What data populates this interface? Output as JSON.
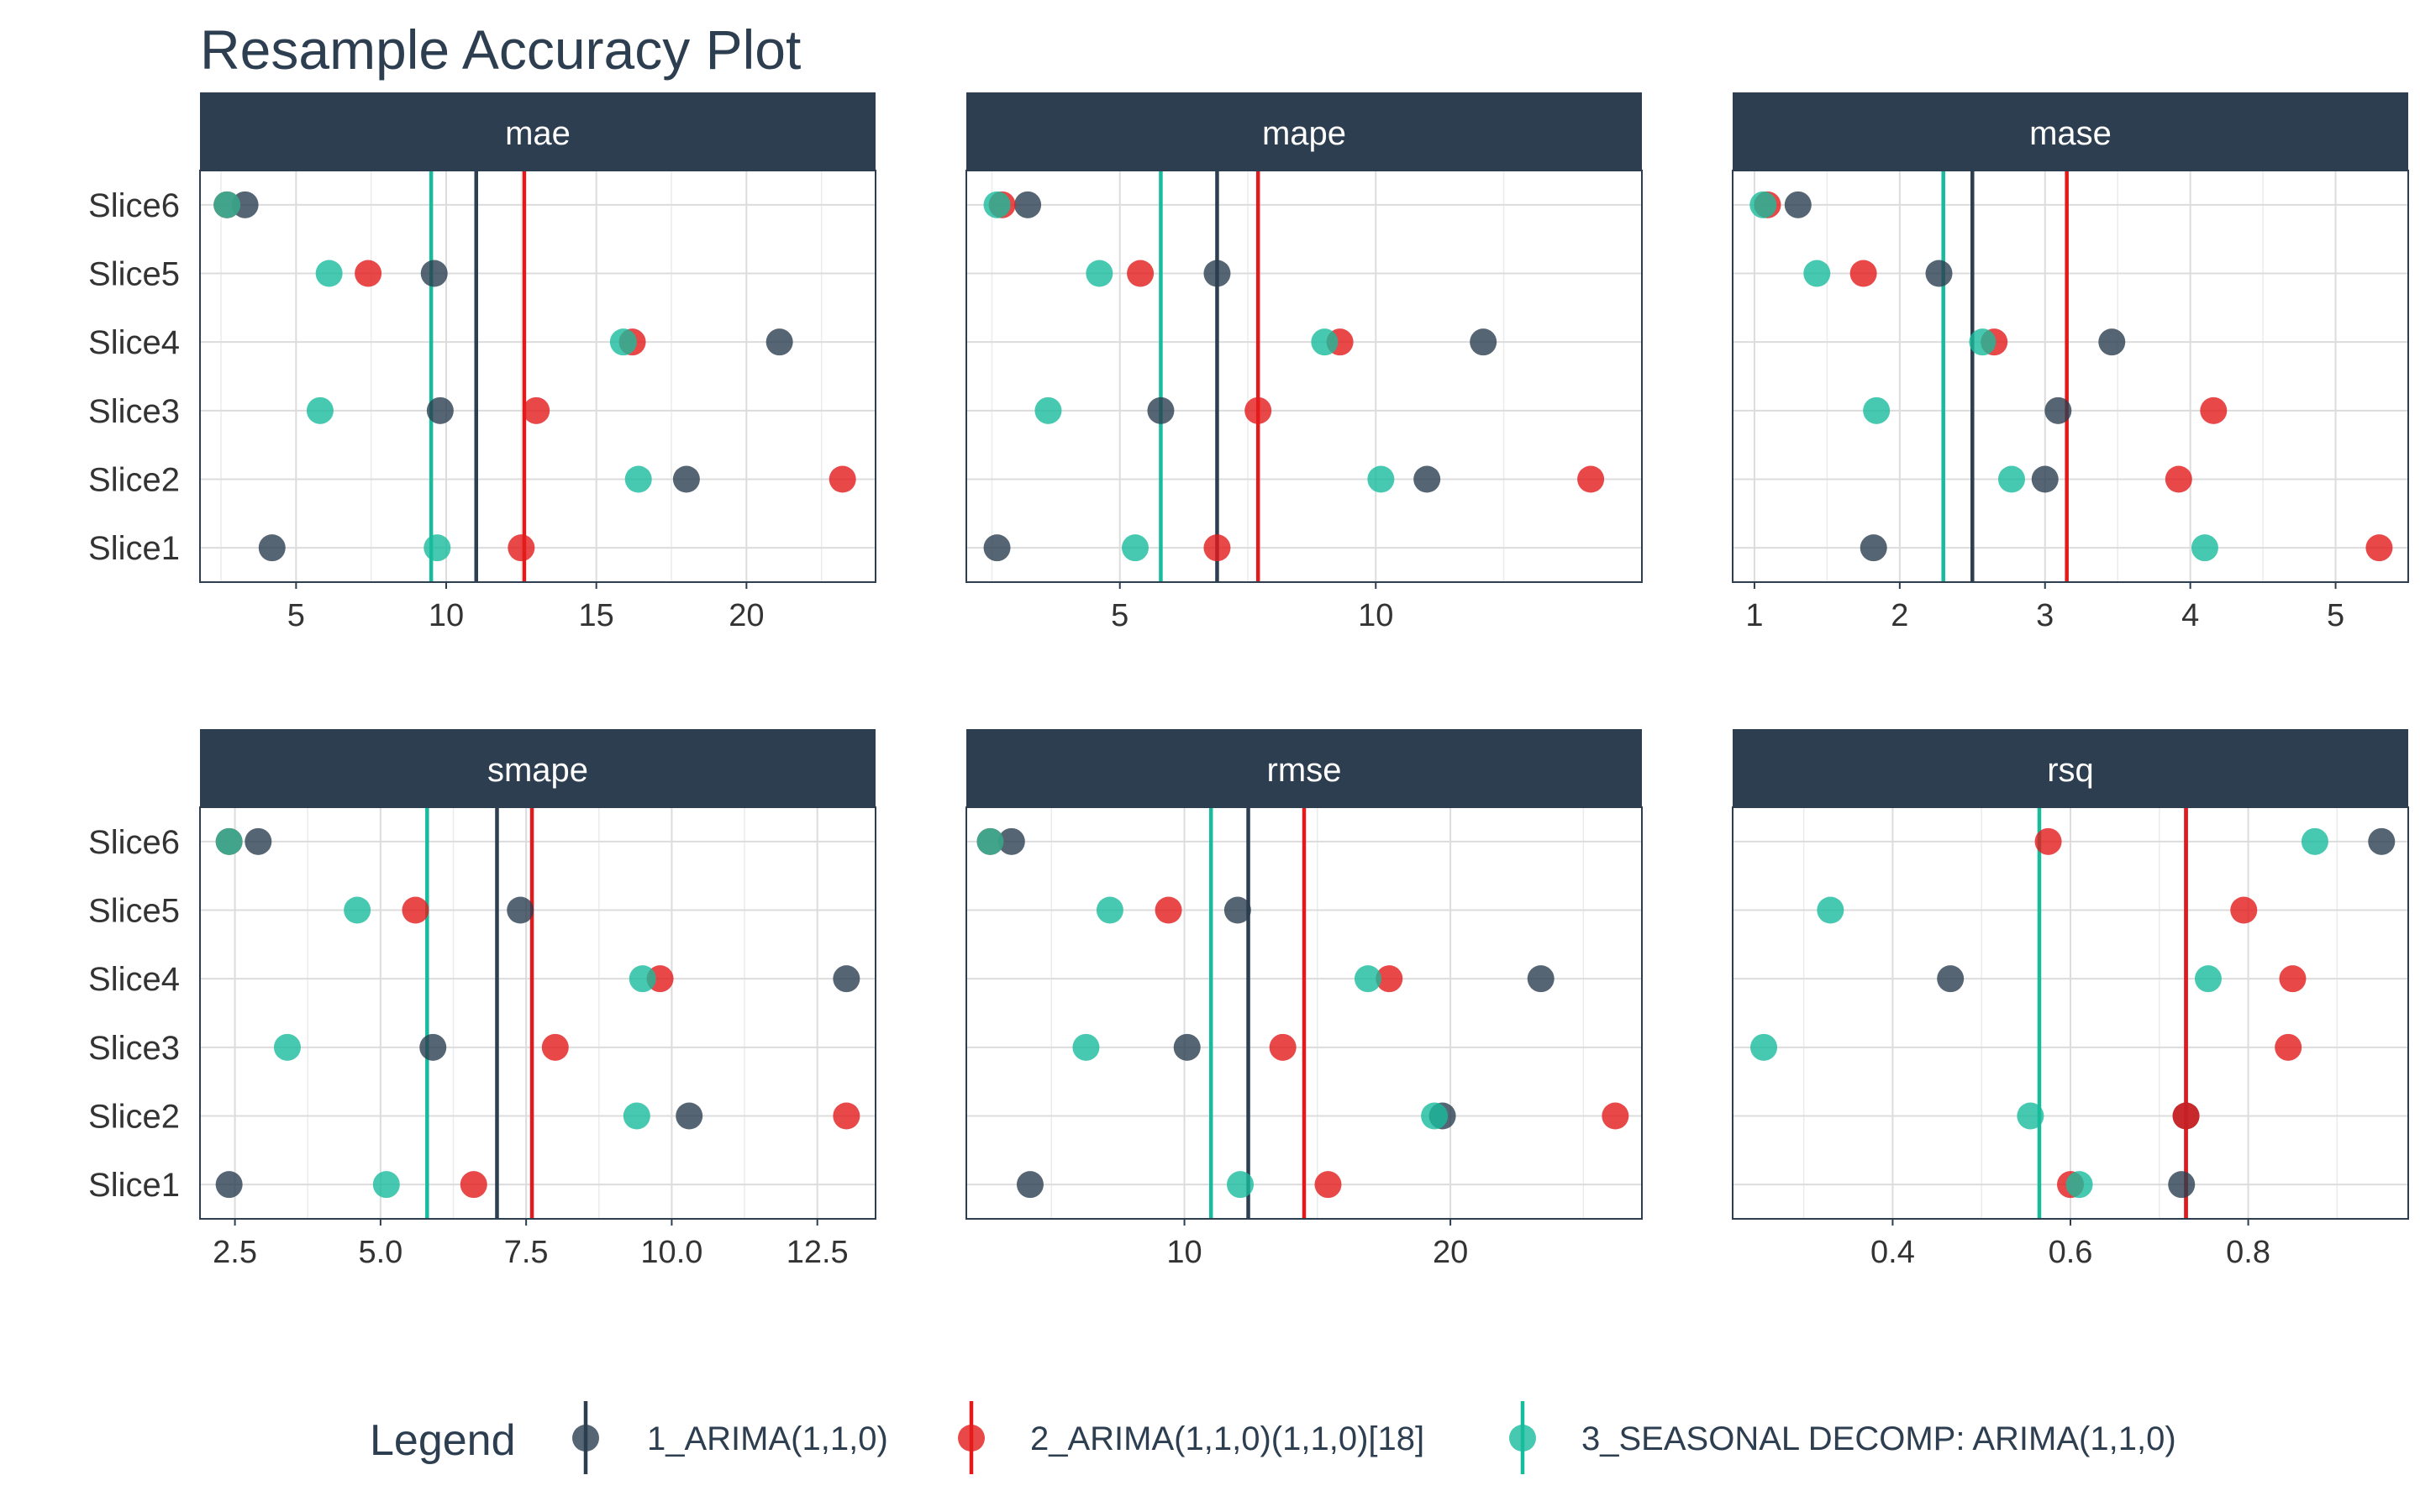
{
  "chart_data": {
    "type": "scatter",
    "title": "Resample Accuracy Plot",
    "categories": [
      "Slice1",
      "Slice2",
      "Slice3",
      "Slice4",
      "Slice5",
      "Slice6"
    ],
    "legend": {
      "title": "Legend",
      "position": "bottom",
      "items": [
        {
          "name": "1_ARIMA(1,1,0)",
          "color": "#2c3e50"
        },
        {
          "name": "2_ARIMA(1,1,0)(1,1,0)[18]",
          "color": "#e31a1c"
        },
        {
          "name": "3_SEASONAL DECOMP: ARIMA(1,1,0)",
          "color": "#18bc9c"
        }
      ]
    },
    "grid": true,
    "panels": [
      {
        "metric": "mae",
        "xlim": [
          1.8,
          24.3
        ],
        "ticks": [
          5,
          10,
          15,
          20
        ],
        "tick_labels": [
          "5",
          "10",
          "15",
          "20"
        ],
        "series": [
          {
            "name": "1_ARIMA(1,1,0)",
            "values": [
              4.2,
              18.0,
              9.8,
              21.1,
              9.6,
              3.3
            ],
            "mean": 11.0
          },
          {
            "name": "2_ARIMA(1,1,0)(1,1,0)[18]",
            "values": [
              12.5,
              23.2,
              13.0,
              16.2,
              7.4,
              2.7
            ],
            "mean": 12.6
          },
          {
            "name": "3_SEASONAL DECOMP: ARIMA(1,1,0)",
            "values": [
              9.7,
              16.4,
              5.8,
              15.9,
              6.1,
              2.7
            ],
            "mean": 9.5
          }
        ]
      },
      {
        "metric": "mape",
        "xlim": [
          2.0,
          15.2
        ],
        "ticks": [
          5,
          10
        ],
        "tick_labels": [
          "5",
          "10"
        ],
        "series": [
          {
            "name": "1_ARIMA(1,1,0)",
            "values": [
              2.6,
              11.0,
              5.8,
              12.1,
              6.9,
              3.2
            ],
            "mean": 6.9
          },
          {
            "name": "2_ARIMA(1,1,0)(1,1,0)[18]",
            "values": [
              6.9,
              14.2,
              7.7,
              9.3,
              5.4,
              2.7
            ],
            "mean": 7.7
          },
          {
            "name": "3_SEASONAL DECOMP: ARIMA(1,1,0)",
            "values": [
              5.3,
              10.1,
              3.6,
              9.0,
              4.6,
              2.6
            ],
            "mean": 5.8
          }
        ]
      },
      {
        "metric": "mase",
        "xlim": [
          0.85,
          5.5
        ],
        "ticks": [
          1,
          2,
          3,
          4,
          5
        ],
        "tick_labels": [
          "1",
          "2",
          "3",
          "4",
          "5"
        ],
        "series": [
          {
            "name": "1_ARIMA(1,1,0)",
            "values": [
              1.82,
              3.0,
              3.09,
              3.46,
              2.27,
              1.3
            ],
            "mean": 2.5
          },
          {
            "name": "2_ARIMA(1,1,0)(1,1,0)[18]",
            "values": [
              5.3,
              3.92,
              4.16,
              2.65,
              1.75,
              1.09
            ],
            "mean": 3.15
          },
          {
            "name": "3_SEASONAL DECOMP: ARIMA(1,1,0)",
            "values": [
              4.1,
              2.77,
              1.84,
              2.57,
              1.43,
              1.06
            ],
            "mean": 2.3
          }
        ]
      },
      {
        "metric": "smape",
        "xlim": [
          1.9,
          13.5
        ],
        "ticks": [
          2.5,
          5.0,
          7.5,
          10.0,
          12.5
        ],
        "tick_labels": [
          "2.5",
          "5.0",
          "7.5",
          "10.0",
          "12.5"
        ],
        "series": [
          {
            "name": "1_ARIMA(1,1,0)",
            "values": [
              2.4,
              10.3,
              5.9,
              13.0,
              7.4,
              2.9
            ],
            "mean": 7.0
          },
          {
            "name": "2_ARIMA(1,1,0)(1,1,0)[18]",
            "values": [
              6.6,
              13.0,
              8.0,
              9.8,
              5.6,
              2.4
            ],
            "mean": 7.6
          },
          {
            "name": "3_SEASONAL DECOMP: ARIMA(1,1,0)",
            "values": [
              5.1,
              9.4,
              3.4,
              9.5,
              4.6,
              2.4
            ],
            "mean": 5.8
          }
        ]
      },
      {
        "metric": "rmse",
        "xlim": [
          1.8,
          27.2
        ],
        "ticks": [
          10,
          20
        ],
        "tick_labels": [
          "10",
          "20"
        ],
        "series": [
          {
            "name": "1_ARIMA(1,1,0)",
            "values": [
              4.2,
              19.7,
              10.1,
              23.4,
              12.0,
              3.5
            ],
            "mean": 12.4
          },
          {
            "name": "2_ARIMA(1,1,0)(1,1,0)[18]",
            "values": [
              15.4,
              26.2,
              13.7,
              17.7,
              9.4,
              2.7
            ],
            "mean": 14.5
          },
          {
            "name": "3_SEASONAL DECOMP: ARIMA(1,1,0)",
            "values": [
              12.1,
              19.4,
              6.3,
              16.9,
              7.2,
              2.7
            ],
            "mean": 11.0
          }
        ]
      },
      {
        "metric": "rsq",
        "xlim": [
          0.22,
          0.98
        ],
        "ticks": [
          0.4,
          0.6,
          0.8
        ],
        "tick_labels": [
          "0.4",
          "0.6",
          "0.8"
        ],
        "series": [
          {
            "name": "1_ARIMA(1,1,0)",
            "values": [
              0.725,
              0.73,
              null,
              0.465,
              null,
              0.95
            ],
            "mean": 0.73
          },
          {
            "name": "2_ARIMA(1,1,0)(1,1,0)[18]",
            "values": [
              0.6,
              0.73,
              0.845,
              0.85,
              0.795,
              0.575
            ],
            "mean": 0.73
          },
          {
            "name": "3_SEASONAL DECOMP: ARIMA(1,1,0)",
            "values": [
              0.61,
              0.555,
              0.255,
              0.755,
              0.33,
              0.875
            ],
            "mean": 0.565
          }
        ]
      }
    ]
  }
}
